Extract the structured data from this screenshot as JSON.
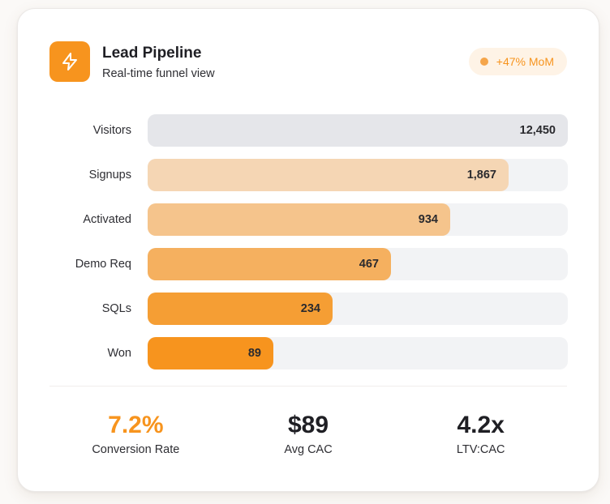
{
  "header": {
    "title": "Lead Pipeline",
    "subtitle": "Real-time funnel view",
    "icon": "lightning-bolt-icon",
    "badge": "+47% MoM"
  },
  "colors": {
    "accent": "#f7941e",
    "track": "#f2f3f5",
    "badge_bg": "#fef3e6"
  },
  "chart_data": {
    "type": "bar",
    "orientation": "horizontal-funnel",
    "title": "Lead Pipeline",
    "subtitle": "Real-time funnel view",
    "categories": [
      "Visitors",
      "Signups",
      "Activated",
      "Demo Req",
      "SQLs",
      "Won"
    ],
    "values": [
      12450,
      1867,
      934,
      467,
      234,
      89
    ],
    "value_labels": [
      "12,450",
      "1,867",
      "934",
      "467",
      "234",
      "89"
    ],
    "fill_fraction": [
      1.0,
      0.86,
      0.72,
      0.58,
      0.44,
      0.3
    ],
    "bar_colors": [
      "#e5e6ea",
      "#f5d6b4",
      "#f5c48c",
      "#f5b05f",
      "#f59e34",
      "#f7941e"
    ],
    "xlabel": "",
    "ylabel": "",
    "grid": false
  },
  "stats": [
    {
      "value": "7.2%",
      "label": "Conversion Rate",
      "accent": true
    },
    {
      "value": "$89",
      "label": "Avg CAC",
      "accent": false
    },
    {
      "value": "4.2x",
      "label": "LTV:CAC",
      "accent": false
    }
  ]
}
